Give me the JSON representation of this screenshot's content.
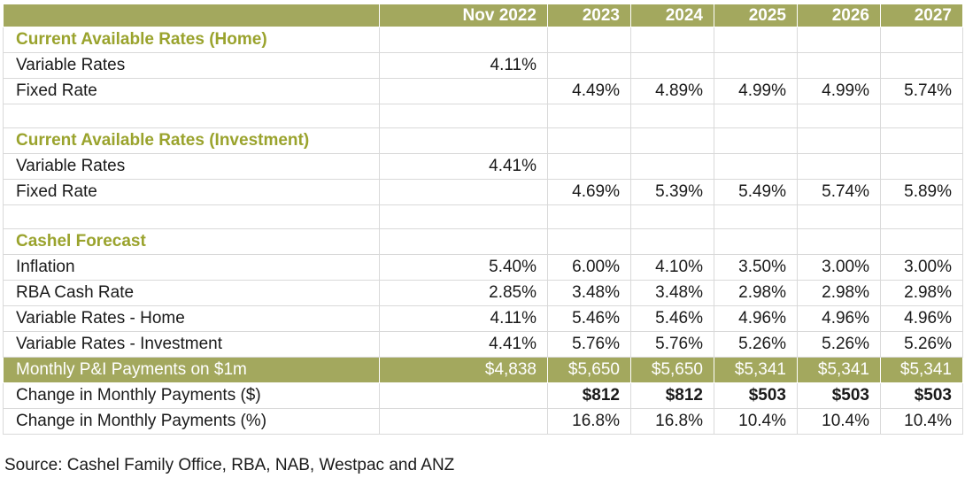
{
  "table": {
    "columns": [
      "",
      "Nov 2022",
      "2023",
      "2024",
      "2025",
      "2026",
      "2027"
    ],
    "rows": [
      {
        "type": "section",
        "label": "Current Available Rates (Home)",
        "values": [
          "",
          "",
          "",
          "",
          "",
          ""
        ]
      },
      {
        "type": "data",
        "label": "Variable Rates",
        "values": [
          "4.11%",
          "",
          "",
          "",
          "",
          ""
        ]
      },
      {
        "type": "data",
        "label": "Fixed Rate",
        "values": [
          "",
          "4.49%",
          "4.89%",
          "4.99%",
          "4.99%",
          "5.74%"
        ]
      },
      {
        "type": "gap",
        "label": "",
        "values": [
          "",
          "",
          "",
          "",
          "",
          ""
        ]
      },
      {
        "type": "section",
        "label": "Current Available Rates (Investment)",
        "values": [
          "",
          "",
          "",
          "",
          "",
          ""
        ]
      },
      {
        "type": "data",
        "label": "Variable Rates",
        "values": [
          "4.41%",
          "",
          "",
          "",
          "",
          ""
        ]
      },
      {
        "type": "data",
        "label": "Fixed Rate",
        "values": [
          "",
          "4.69%",
          "5.39%",
          "5.49%",
          "5.74%",
          "5.89%"
        ]
      },
      {
        "type": "gap",
        "label": "",
        "values": [
          "",
          "",
          "",
          "",
          "",
          ""
        ]
      },
      {
        "type": "section",
        "label": "Cashel Forecast",
        "values": [
          "",
          "",
          "",
          "",
          "",
          ""
        ]
      },
      {
        "type": "data",
        "label": "Inflation",
        "values": [
          "5.40%",
          "6.00%",
          "4.10%",
          "3.50%",
          "3.00%",
          "3.00%"
        ]
      },
      {
        "type": "data",
        "label": "RBA Cash Rate",
        "values": [
          "2.85%",
          "3.48%",
          "3.48%",
          "2.98%",
          "2.98%",
          "2.98%"
        ]
      },
      {
        "type": "data",
        "label": "Variable Rates - Home",
        "values": [
          "4.11%",
          "5.46%",
          "5.46%",
          "4.96%",
          "4.96%",
          "4.96%"
        ]
      },
      {
        "type": "data",
        "label": "Variable Rates - Investment",
        "values": [
          "4.41%",
          "5.76%",
          "5.76%",
          "5.26%",
          "5.26%",
          "5.26%"
        ]
      },
      {
        "type": "highlight",
        "label": "Monthly P&I Payments on $1m",
        "values": [
          "$4,838",
          "$5,650",
          "$5,650",
          "$5,341",
          "$5,341",
          "$5,341"
        ]
      },
      {
        "type": "bold",
        "label": "Change in Monthly Payments ($)",
        "values": [
          "",
          "$812",
          "$812",
          "$503",
          "$503",
          "$503"
        ]
      },
      {
        "type": "data",
        "label": "Change in Monthly Payments (%)",
        "values": [
          "",
          "16.8%",
          "16.8%",
          "10.4%",
          "10.4%",
          "10.4%"
        ]
      }
    ]
  },
  "source": "Source: Cashel Family Office, RBA, NAB, Westpac and ANZ",
  "colors": {
    "header_bg": "#a3a85e",
    "section_text": "#9aa32d"
  }
}
